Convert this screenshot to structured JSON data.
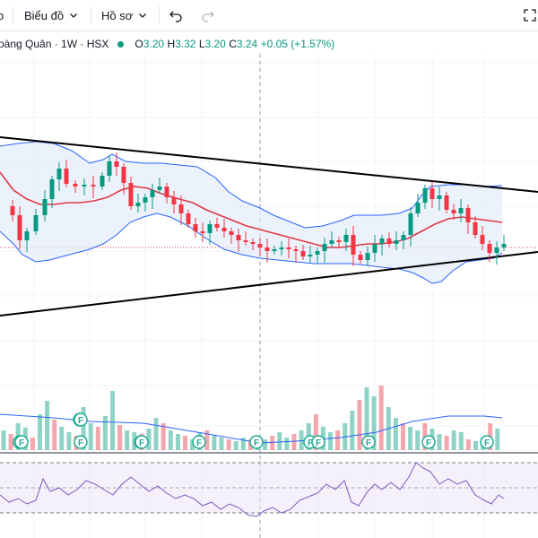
{
  "toolbar": {
    "first_fragment": "o",
    "chart_label": "Biểu đồ",
    "profile_label": "Hồ sơ"
  },
  "legend": {
    "symbol_title": "oàng Quân · 1W · HSX",
    "o_label": "O",
    "o_value": "3.20",
    "h_label": "H",
    "h_value": "3.32",
    "l_label": "L",
    "l_value": "3.20",
    "c_label": "C",
    "c_value": "3.24",
    "change": "+0.05 (+1.57%)"
  },
  "colors": {
    "up": "#089981",
    "down": "#f23645",
    "up_volume": "#8fd3c7",
    "down_volume": "#f5a6ac",
    "bollinger_band": "#2962ff",
    "basis": "#e03a45",
    "rsi_line": "#7e57c2",
    "rsi_fill": "#ede7f6"
  },
  "icons": {
    "chevron": "chevron-down-icon",
    "undo": "undo-icon",
    "redo": "redo-icon",
    "fullscreen": "fullscreen-icon",
    "fundamental_marker": "F"
  },
  "chart_data": {
    "type": "candlestick",
    "interval": "1W",
    "last_bar": {
      "open": 3.2,
      "high": 3.32,
      "low": 3.2,
      "close": 3.24
    },
    "markers": {
      "label": "F",
      "count": 14
    },
    "indicators": [
      "bollinger-bands",
      "volume",
      "rsi"
    ],
    "grid": true
  }
}
